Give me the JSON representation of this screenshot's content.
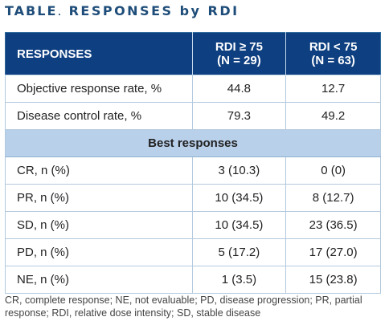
{
  "title": {
    "lead": "TABLE",
    "sep": ".",
    "rest": "RESPONSES by RDI"
  },
  "table": {
    "header": {
      "col1": "RESPONSES",
      "col2_line1": "RDI ≥ 75",
      "col2_line2": "(N = 29)",
      "col3_line1": "RDI < 75",
      "col3_line2": "(N = 63)"
    },
    "rows_top": [
      {
        "label": "Objective response rate, %",
        "v1": "44.8",
        "v2": "12.7"
      },
      {
        "label": "Disease control rate, %",
        "v1": "79.3",
        "v2": "49.2"
      }
    ],
    "section": "Best responses",
    "rows_bottom": [
      {
        "label": "CR, n (%)",
        "v1": "3 (10.3)",
        "v2": "0 (0)"
      },
      {
        "label": "PR, n (%)",
        "v1": "10 (34.5)",
        "v2": "8 (12.7)"
      },
      {
        "label": "SD, n (%)",
        "v1": "10 (34.5)",
        "v2": "23 (36.5)"
      },
      {
        "label": "PD, n (%)",
        "v1": "5 (17.2)",
        "v2": "17 (27.0)"
      },
      {
        "label": "NE, n (%)",
        "v1": "1 (3.5)",
        "v2": "15 (23.8)"
      }
    ]
  },
  "footnote": "CR, complete response; NE, not evaluable; PD, disease progression; PR, partial response; RDI, relative dose intensity; SD, stable disease",
  "colors": {
    "title": "#1f4d7a",
    "header_bg": "#0e3f80",
    "section_bg": "#b8d0ea",
    "border": "#b3c9de"
  }
}
